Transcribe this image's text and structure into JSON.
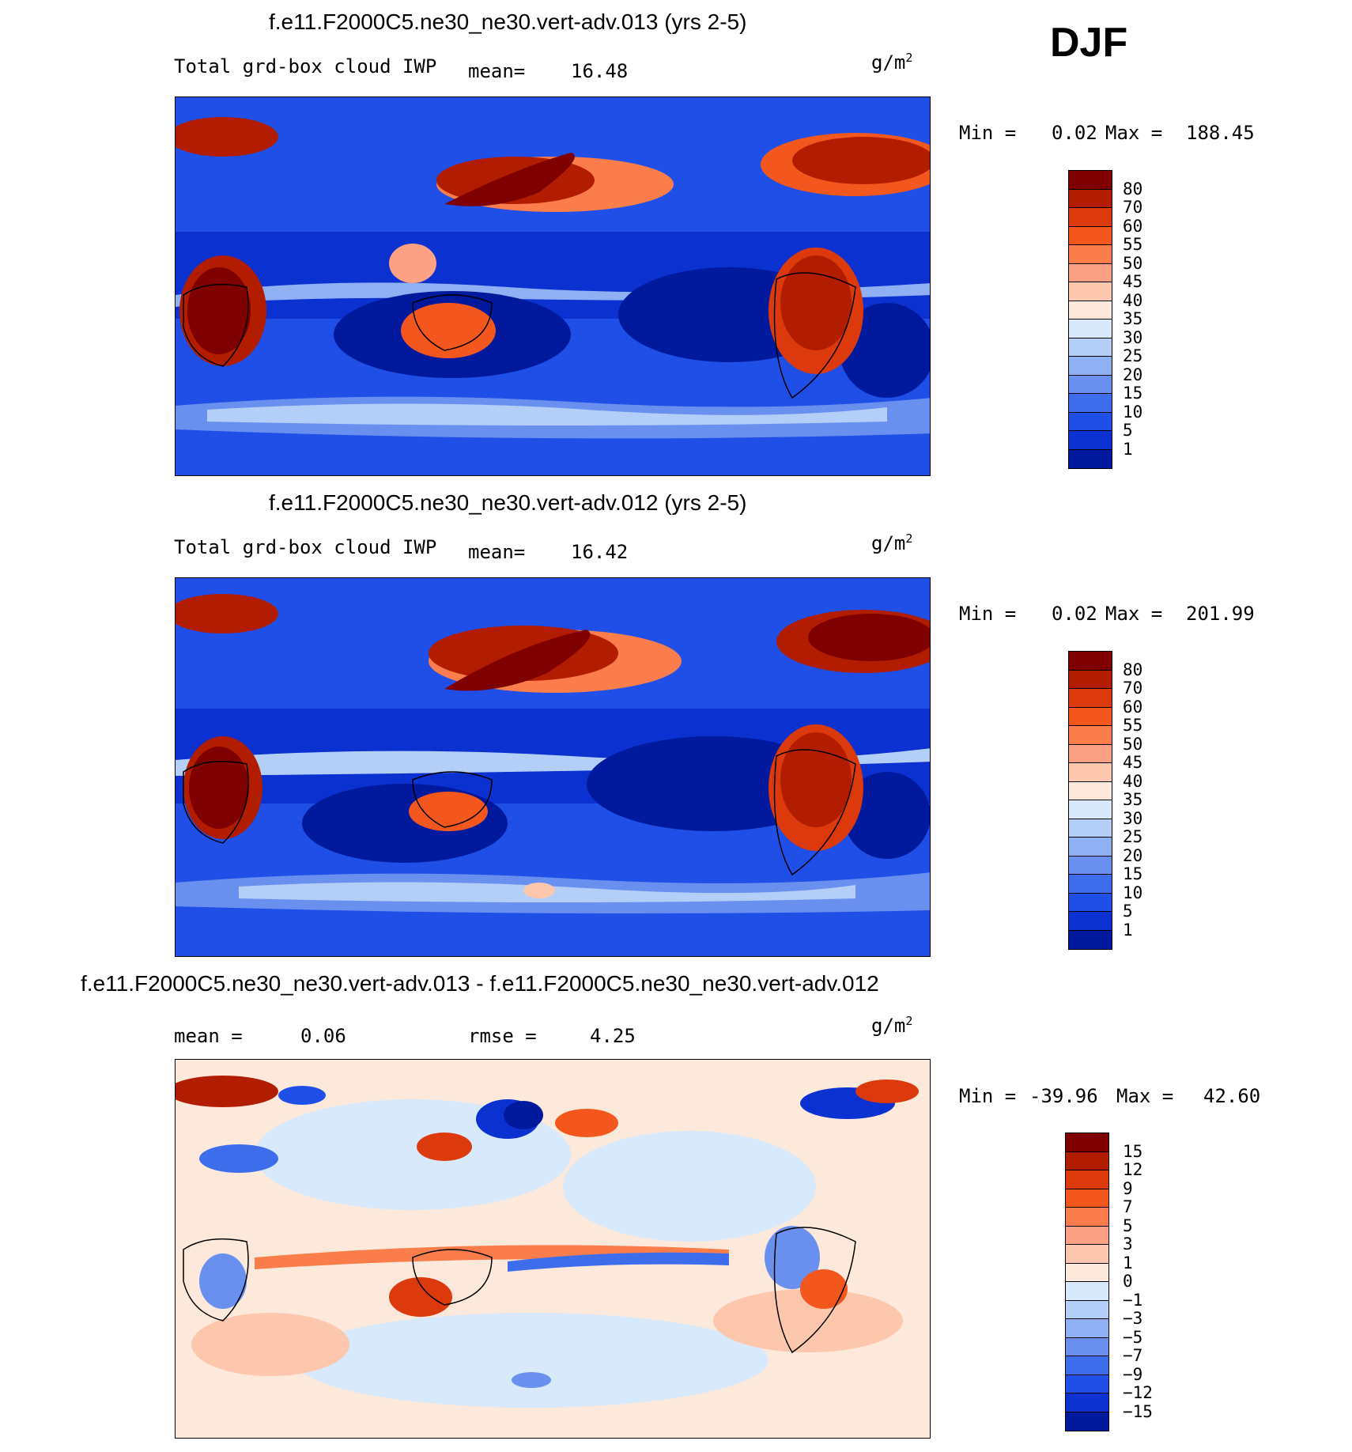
{
  "season": "DJF",
  "panels": [
    {
      "title": "f.e11.F2000C5.ne30_ne30.vert-adv.013 (yrs 2-5)",
      "variable": "Total grd-box cloud IWP",
      "mean_label": "mean=",
      "mean_value": "16.48",
      "units": "g/m",
      "units_sup": "2",
      "min_label": "Min =",
      "min_value": "0.02",
      "max_label": "Max =",
      "max_value": "188.45",
      "levels": [
        "80",
        "70",
        "60",
        "55",
        "50",
        "45",
        "40",
        "35",
        "30",
        "25",
        "20",
        "15",
        "10",
        "5",
        "1"
      ],
      "colors": [
        "#7f0000",
        "#b21d00",
        "#dc3a0c",
        "#f4571d",
        "#fb7d4b",
        "#fca183",
        "#fcc7ad",
        "#fde9dc",
        "#d7e9fb",
        "#b4cff7",
        "#8fb0f3",
        "#6a90ef",
        "#3d6deb",
        "#1f4fe6",
        "#0b31d1",
        "#011a9d"
      ]
    },
    {
      "title": "f.e11.F2000C5.ne30_ne30.vert-adv.012 (yrs 2-5)",
      "variable": "Total grd-box cloud IWP",
      "mean_label": "mean=",
      "mean_value": "16.42",
      "units": "g/m",
      "units_sup": "2",
      "min_label": "Min =",
      "min_value": "0.02",
      "max_label": "Max =",
      "max_value": "201.99",
      "levels": [
        "80",
        "70",
        "60",
        "55",
        "50",
        "45",
        "40",
        "35",
        "30",
        "25",
        "20",
        "15",
        "10",
        "5",
        "1"
      ],
      "colors": [
        "#7f0000",
        "#b21d00",
        "#dc3a0c",
        "#f4571d",
        "#fb7d4b",
        "#fca183",
        "#fcc7ad",
        "#fde9dc",
        "#d7e9fb",
        "#b4cff7",
        "#8fb0f3",
        "#6a90ef",
        "#3d6deb",
        "#1f4fe6",
        "#0b31d1",
        "#011a9d"
      ]
    },
    {
      "title": "f.e11.F2000C5.ne30_ne30.vert-adv.013 - f.e11.F2000C5.ne30_ne30.vert-adv.012",
      "mean_label": "mean =",
      "mean_value": "0.06",
      "rmse_label": "rmse =",
      "rmse_value": "4.25",
      "units": "g/m",
      "units_sup": "2",
      "min_label": "Min =",
      "min_value": "-39.96",
      "max_label": "Max =",
      "max_value": "42.60",
      "levels": [
        "15",
        "12",
        "9",
        "7",
        "5",
        "3",
        "1",
        "0",
        "-1",
        "-3",
        "-5",
        "-7",
        "-9",
        "-12",
        "-15"
      ],
      "colors": [
        "#7f0000",
        "#b21d00",
        "#dc3a0c",
        "#f4571d",
        "#fb7d4b",
        "#fca183",
        "#fcc7ad",
        "#fde9dc",
        "#d7e9fb",
        "#b4cff7",
        "#8fb0f3",
        "#6a90ef",
        "#3d6deb",
        "#1f4fe6",
        "#0b31d1",
        "#011a9d"
      ]
    }
  ],
  "chart_data": [
    {
      "type": "heatmap",
      "title": "f.e11.F2000C5.ne30_ne30.vert-adv.013 (yrs 2-5)",
      "variable": "Total grd-box cloud IWP",
      "units": "g/m2",
      "mean": 16.48,
      "min": 0.02,
      "max": 188.45,
      "contour_levels": [
        1,
        5,
        10,
        15,
        20,
        25,
        30,
        35,
        40,
        45,
        50,
        55,
        60,
        70,
        80
      ]
    },
    {
      "type": "heatmap",
      "title": "f.e11.F2000C5.ne30_ne30.vert-adv.012 (yrs 2-5)",
      "variable": "Total grd-box cloud IWP",
      "units": "g/m2",
      "mean": 16.42,
      "min": 0.02,
      "max": 201.99,
      "contour_levels": [
        1,
        5,
        10,
        15,
        20,
        25,
        30,
        35,
        40,
        45,
        50,
        55,
        60,
        70,
        80
      ]
    },
    {
      "type": "heatmap",
      "title": "f.e11.F2000C5.ne30_ne30.vert-adv.013 - f.e11.F2000C5.ne30_ne30.vert-adv.012",
      "units": "g/m2",
      "mean": 0.06,
      "rmse": 4.25,
      "min": -39.96,
      "max": 42.6,
      "contour_levels": [
        -15,
        -12,
        -9,
        -7,
        -5,
        -3,
        -1,
        0,
        1,
        3,
        5,
        7,
        9,
        12,
        15
      ]
    }
  ]
}
